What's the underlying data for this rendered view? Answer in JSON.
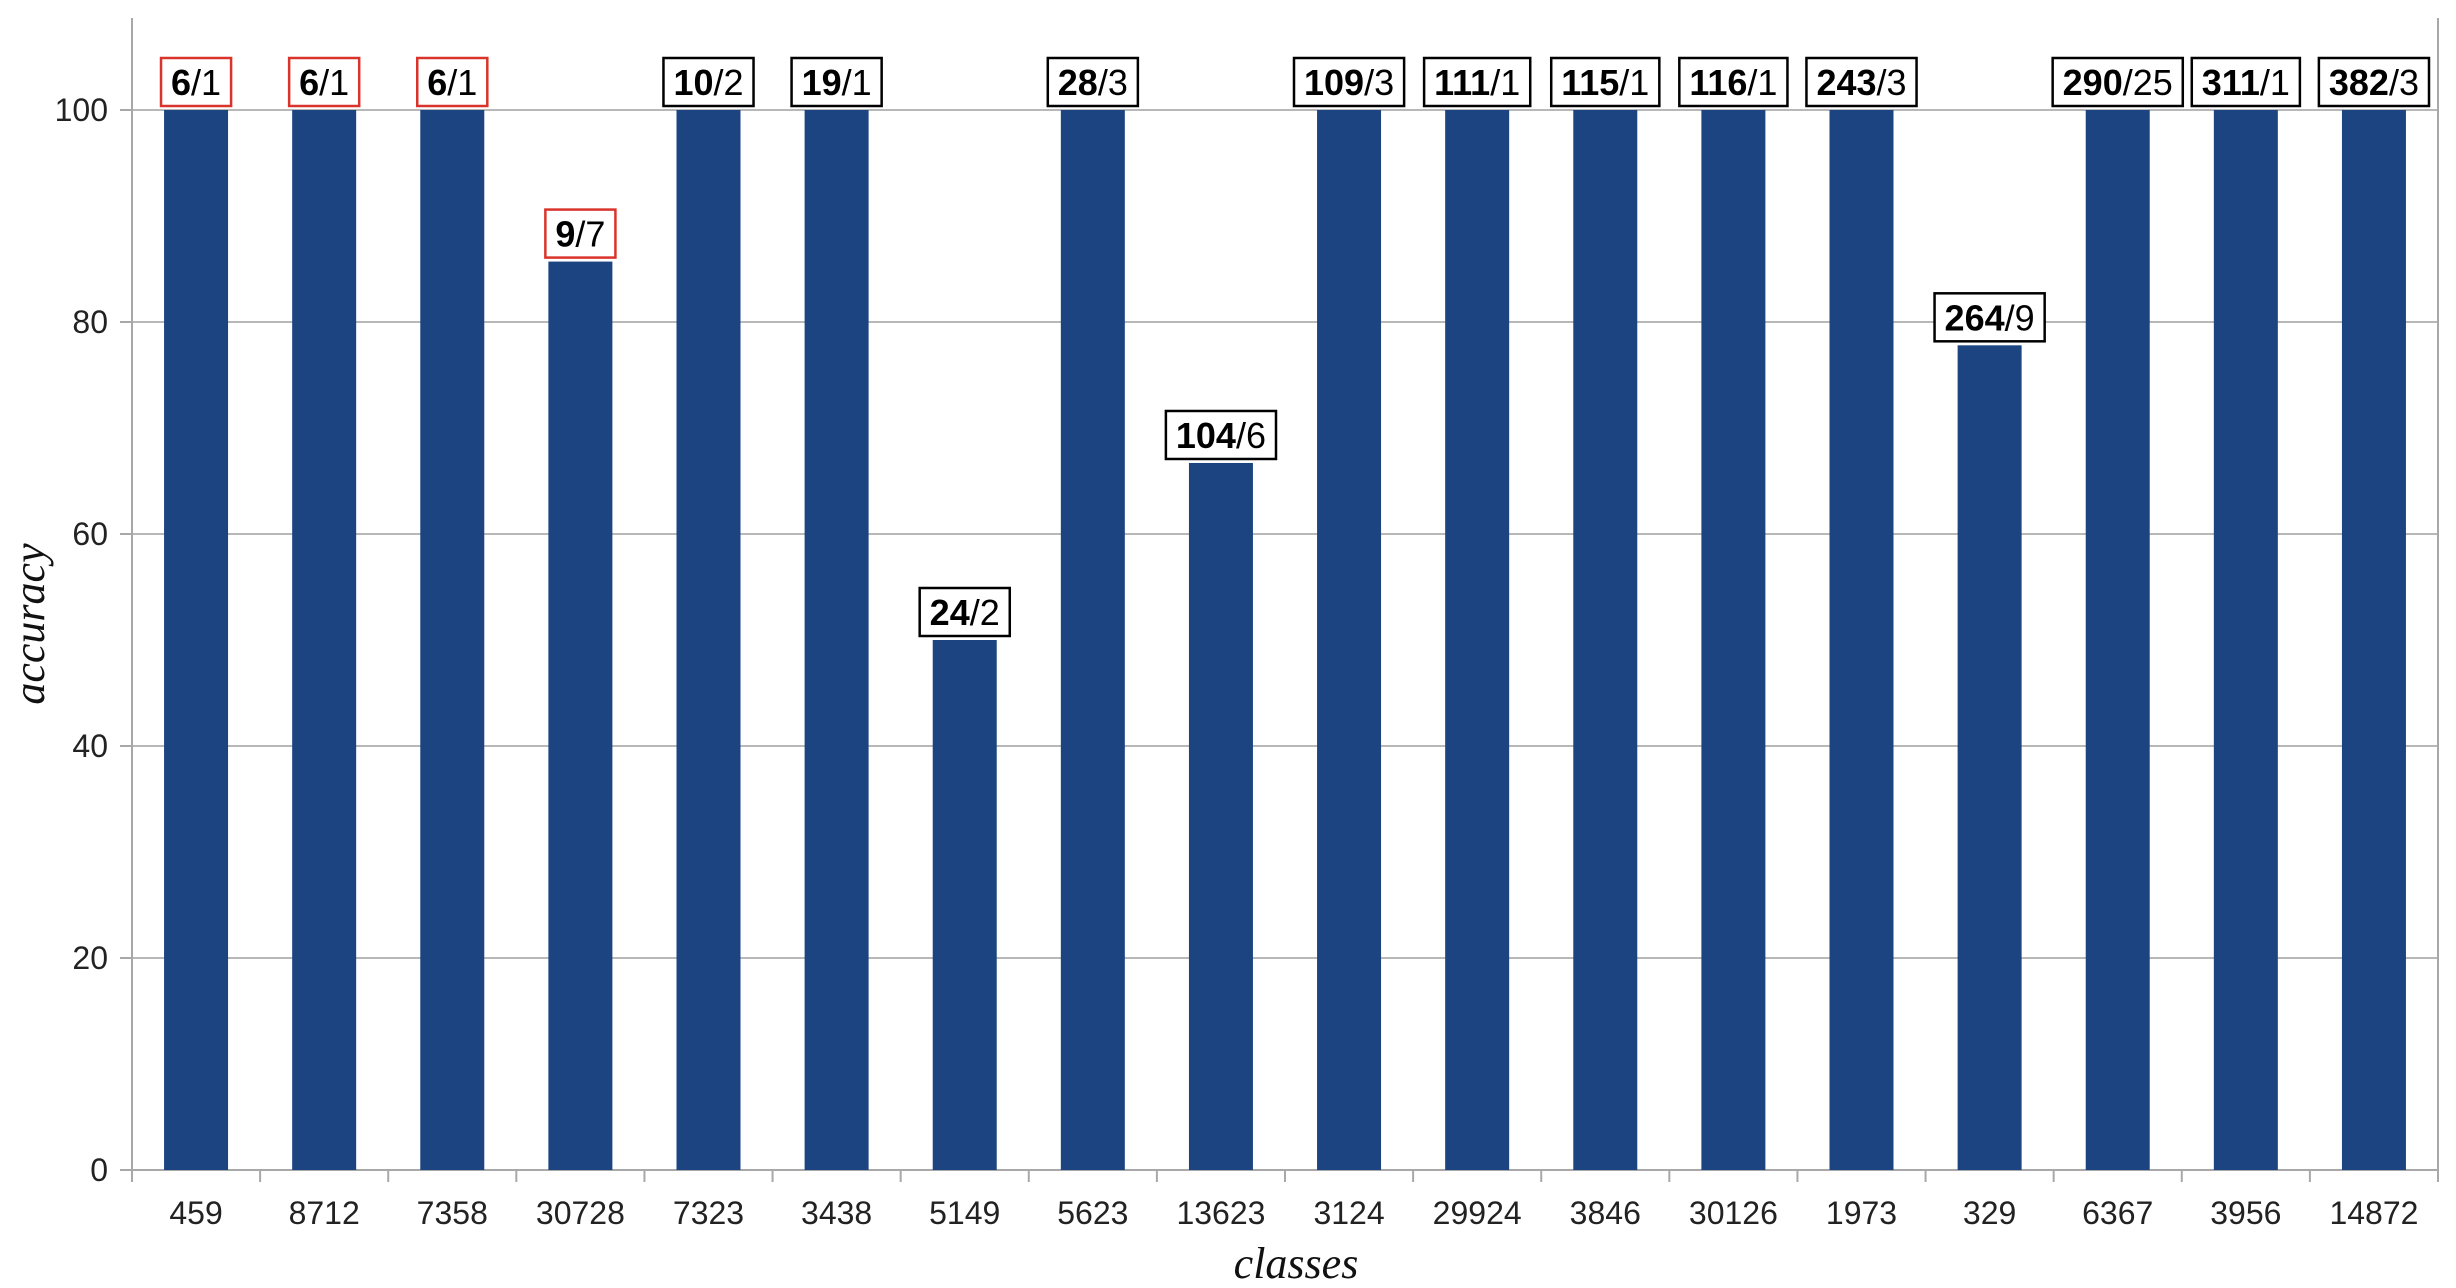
{
  "chart_data": {
    "type": "bar",
    "xlabel": "classes",
    "ylabel": "accuracy",
    "ylim": [
      0,
      100
    ],
    "yticks": [
      0,
      20,
      40,
      60,
      80,
      100
    ],
    "grid": true,
    "categories": [
      "459",
      "8712",
      "7358",
      "30728",
      "7323",
      "3438",
      "5149",
      "5623",
      "13623",
      "3124",
      "29924",
      "3846",
      "30126",
      "1973",
      "329",
      "6367",
      "3956",
      "14872"
    ],
    "values": [
      100,
      100,
      100,
      85.7,
      100,
      100,
      50,
      100,
      66.7,
      100,
      100,
      100,
      100,
      100,
      77.8,
      100,
      100,
      100
    ],
    "annotations": [
      {
        "bold": "6",
        "rest": "/1",
        "border": "#d9342b"
      },
      {
        "bold": "6",
        "rest": "/1",
        "border": "#d9342b"
      },
      {
        "bold": "6",
        "rest": "/1",
        "border": "#d9342b"
      },
      {
        "bold": "9",
        "rest": "/7",
        "border": "#d9342b"
      },
      {
        "bold": "10",
        "rest": "/2",
        "border": "#000000"
      },
      {
        "bold": "19",
        "rest": "/1",
        "border": "#000000"
      },
      {
        "bold": "24",
        "rest": "/2",
        "border": "#000000"
      },
      {
        "bold": "28",
        "rest": "/3",
        "border": "#000000"
      },
      {
        "bold": "104",
        "rest": "/6",
        "border": "#000000"
      },
      {
        "bold": "109",
        "rest": "/3",
        "border": "#000000"
      },
      {
        "bold": "111",
        "rest": "/1",
        "border": "#000000"
      },
      {
        "bold": "115",
        "rest": "/1",
        "border": "#000000"
      },
      {
        "bold": "116",
        "rest": "/1",
        "border": "#000000"
      },
      {
        "bold": "243",
        "rest": "/3",
        "border": "#000000"
      },
      {
        "bold": "264",
        "rest": "/9",
        "border": "#000000"
      },
      {
        "bold": "290",
        "rest": "/25",
        "border": "#000000"
      },
      {
        "bold": "311",
        "rest": "/1",
        "border": "#000000"
      },
      {
        "bold": "382",
        "rest": "/3",
        "border": "#000000"
      }
    ],
    "colors": {
      "bar": "#1b4480",
      "grid": "#b8b8b8",
      "axis": "#a8a8a8"
    }
  }
}
